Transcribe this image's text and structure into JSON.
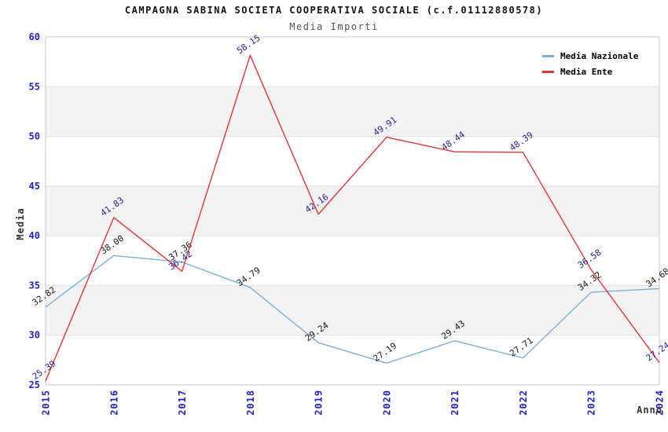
{
  "chart_data": {
    "type": "line",
    "title": "CAMPAGNA SABINA SOCIETA COOPERATIVA SOCIALE (c.f.01112880578)",
    "subtitle": "Media Importi",
    "xlabel": "Anno",
    "ylabel": "Media",
    "ylim": [
      25,
      60
    ],
    "yticks": [
      25,
      30,
      35,
      40,
      45,
      50,
      55,
      60
    ],
    "categories": [
      "2015",
      "2016",
      "2017",
      "2018",
      "2019",
      "2020",
      "2021",
      "2022",
      "2023",
      "2024"
    ],
    "series": [
      {
        "name": "Media Nazionale",
        "color": "#79afe1",
        "label_color": "#1a1a1a",
        "values": [
          32.82,
          38.0,
          37.36,
          34.79,
          29.24,
          27.19,
          29.43,
          27.71,
          34.32,
          34.68
        ]
      },
      {
        "name": "Media Ente",
        "color": "#e63232",
        "label_color": "#262699",
        "values": [
          25.39,
          41.83,
          36.42,
          58.15,
          42.16,
          49.91,
          48.44,
          48.39,
          36.58,
          27.24
        ]
      }
    ],
    "legend_position": "top-right",
    "grid": "horizontal-bands",
    "band_color": "#f3f3f3",
    "gridline_color": "#e0e0e0",
    "border_color": "#c9c9c9",
    "tick_color": "#2222cc"
  }
}
